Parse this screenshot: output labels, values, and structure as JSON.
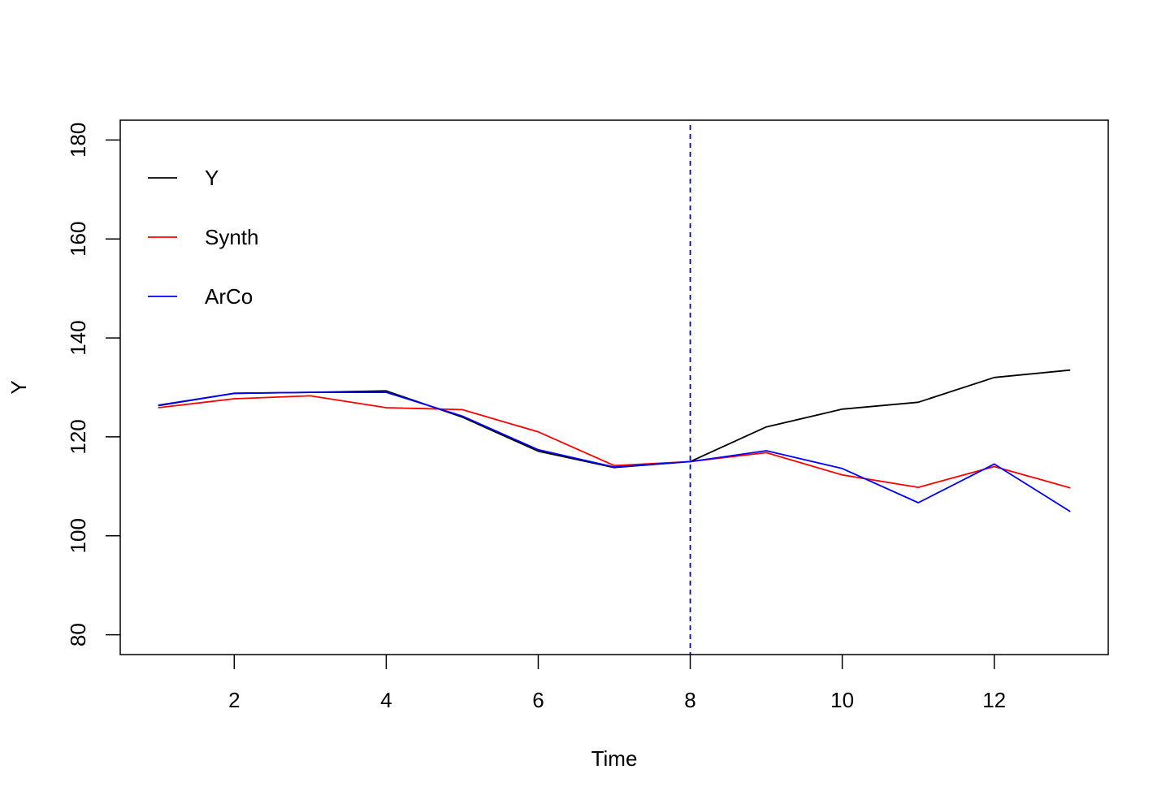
{
  "chart_data": {
    "type": "line",
    "title": "",
    "xlabel": "Time",
    "ylabel": "Y",
    "xlim": [
      0.5,
      13.5
    ],
    "ylim": [
      76,
      184
    ],
    "x_ticks": [
      2,
      4,
      6,
      8,
      10,
      12
    ],
    "y_ticks": [
      80,
      100,
      120,
      140,
      160,
      180
    ],
    "x": [
      1,
      2,
      3,
      4,
      5,
      6,
      7,
      8,
      9,
      10,
      11,
      12,
      13
    ],
    "series": [
      {
        "name": "Y",
        "color": "#000000",
        "values": [
          126.3,
          128.8,
          129.0,
          129.3,
          124.0,
          117.1,
          113.8,
          115.0,
          122.0,
          125.6,
          127.0,
          132.0,
          133.5
        ]
      },
      {
        "name": "Synth",
        "color": "#ff0000",
        "values": [
          125.9,
          127.7,
          128.3,
          125.9,
          125.5,
          121.0,
          114.2,
          115.0,
          116.8,
          112.3,
          109.8,
          114.0,
          109.7
        ]
      },
      {
        "name": "ArCo",
        "color": "#0000ff",
        "values": [
          126.4,
          128.8,
          129.0,
          129.0,
          124.2,
          117.4,
          113.9,
          115.0,
          117.2,
          113.6,
          106.7,
          114.5,
          104.9
        ]
      }
    ],
    "vline": {
      "x": 8,
      "color": "#0000cc",
      "style": "dashed"
    },
    "legend": {
      "position": "top-left",
      "entries": [
        "Y",
        "Synth",
        "ArCo"
      ]
    },
    "grid": false
  }
}
